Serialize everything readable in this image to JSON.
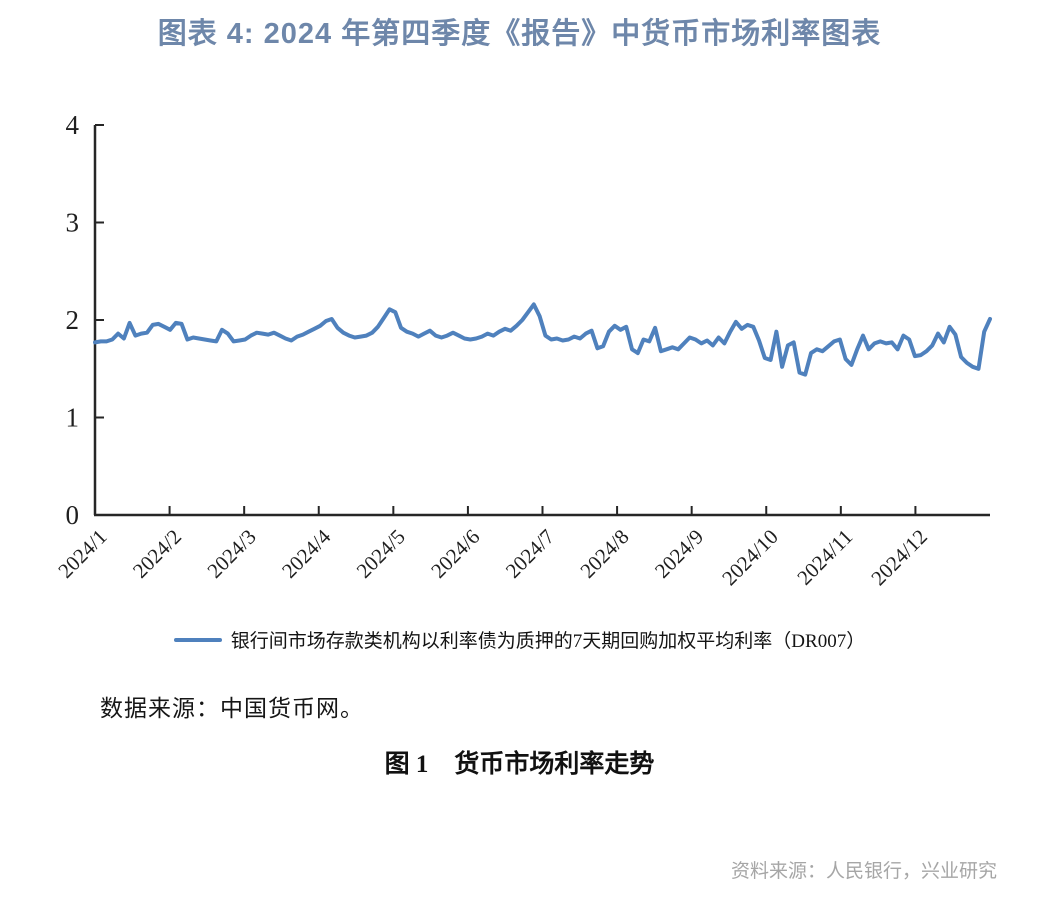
{
  "header": {
    "title": "图表 4: 2024 年第四季度《报告》中货币市场利率图表",
    "title_color": "#6e87aa"
  },
  "legend": {
    "label": "银行间市场存款类机构以利率债为质押的7天期回购加权平均利率（DR007）",
    "swatch_color": "#4f81bd"
  },
  "notes": {
    "data_source": "数据来源：中国货币网。"
  },
  "caption": {
    "label": "图 1",
    "text": "货币市场利率走势"
  },
  "footer": {
    "attribution": "资料来源：人民银行，兴业研究",
    "color": "#a6a6a6"
  },
  "chart_data": {
    "type": "line",
    "title": "货币市场利率走势（DR007）",
    "unit": "%",
    "categories": [
      "2024/1",
      "2024/2",
      "2024/3",
      "2024/4",
      "2024/5",
      "2024/6",
      "2024/7",
      "2024/8",
      "2024/9",
      "2024/10",
      "2024/11",
      "2024/12"
    ],
    "points_per_month": 13,
    "series": [
      {
        "name": "银行间市场存款类机构以利率债为质押的7天期回购加权平均利率（DR007）",
        "values": [
          1.77,
          1.78,
          1.78,
          1.8,
          1.86,
          1.81,
          1.97,
          1.84,
          1.86,
          1.87,
          1.95,
          1.96,
          1.93,
          1.9,
          1.97,
          1.96,
          1.8,
          1.82,
          1.81,
          1.8,
          1.79,
          1.78,
          1.9,
          1.86,
          1.78,
          1.79,
          1.8,
          1.84,
          1.87,
          1.86,
          1.85,
          1.87,
          1.84,
          1.81,
          1.79,
          1.83,
          1.85,
          1.88,
          1.91,
          1.94,
          1.99,
          2.01,
          1.92,
          1.87,
          1.84,
          1.82,
          1.83,
          1.84,
          1.87,
          1.93,
          2.02,
          2.11,
          2.08,
          1.92,
          1.88,
          1.86,
          1.83,
          1.86,
          1.89,
          1.84,
          1.82,
          1.84,
          1.87,
          1.84,
          1.81,
          1.8,
          1.81,
          1.83,
          1.86,
          1.84,
          1.88,
          1.91,
          1.89,
          1.94,
          2.0,
          2.08,
          2.16,
          2.04,
          1.84,
          1.8,
          1.81,
          1.79,
          1.8,
          1.83,
          1.81,
          1.86,
          1.89,
          1.71,
          1.73,
          1.88,
          1.94,
          1.9,
          1.93,
          1.7,
          1.66,
          1.8,
          1.78,
          1.92,
          1.68,
          1.7,
          1.72,
          1.7,
          1.76,
          1.82,
          1.8,
          1.76,
          1.79,
          1.74,
          1.82,
          1.76,
          1.88,
          1.98,
          1.91,
          1.95,
          1.93,
          1.79,
          1.61,
          1.59,
          1.88,
          1.52,
          1.74,
          1.77,
          1.46,
          1.44,
          1.66,
          1.7,
          1.68,
          1.73,
          1.78,
          1.8,
          1.6,
          1.54,
          1.7,
          1.84,
          1.7,
          1.76,
          1.78,
          1.76,
          1.77,
          1.7,
          1.84,
          1.8,
          1.63,
          1.64,
          1.68,
          1.74,
          1.86,
          1.77,
          1.93,
          1.85,
          1.62,
          1.56,
          1.52,
          1.5,
          1.88,
          2.01
        ]
      }
    ],
    "ylim": [
      0,
      4
    ],
    "yticks": [
      0,
      1,
      2,
      3,
      4
    ],
    "grid": false,
    "legend_position": "bottom",
    "line_color": "#4f81bd",
    "axis_color": "#262626",
    "line_width": 4
  }
}
